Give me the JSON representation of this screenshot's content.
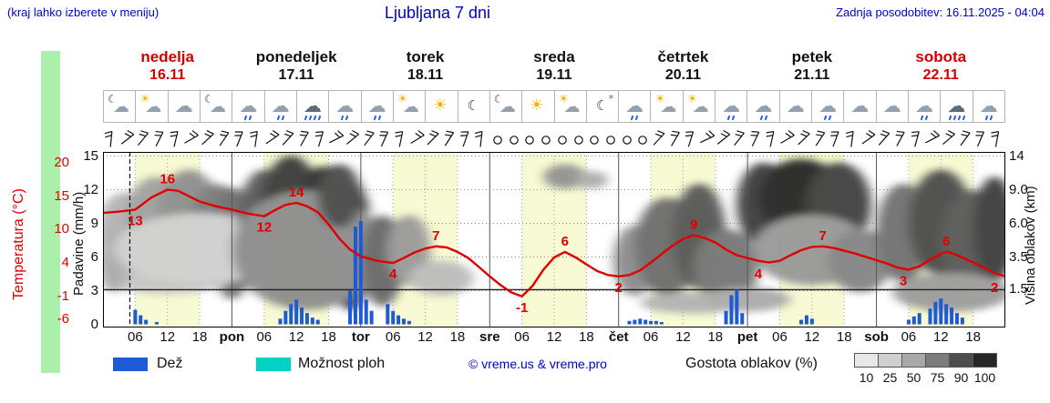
{
  "header": {
    "hint": "(kraj lahko izberete v meniju)",
    "title": "Ljubljana 7 dni",
    "updated": "Zadnja posodobitev: 16.11.2025 - 04:04"
  },
  "axes": {
    "temp_label": "Temperatura (°C)",
    "temp_ticks": [
      "20",
      "15",
      "10",
      "4",
      "-1",
      "-6"
    ],
    "precip_label": "Padavine (mm/h)",
    "precip_ticks": [
      "15",
      "12",
      "9",
      "6",
      "3",
      "0"
    ],
    "cloud_label": "Višina oblakov (km)",
    "cloud_ticks": [
      "14",
      "9.0",
      "6.0",
      "3.5",
      "1.5"
    ]
  },
  "days": [
    {
      "name": "nedelja",
      "date": "16.11",
      "weekend": true,
      "icons": [
        "moon-cloud",
        "sun-cloud",
        "cloud",
        "moon-cloud"
      ]
    },
    {
      "name": "ponedeljek",
      "date": "17.11",
      "weekend": false,
      "icons": [
        "cloud-rain",
        "cloud-rain",
        "heavy-rain",
        "cloud-rain"
      ]
    },
    {
      "name": "torek",
      "date": "18.11",
      "weekend": false,
      "icons": [
        "cloud-rain",
        "sun-cloud",
        "sun",
        "moon"
      ]
    },
    {
      "name": "sreda",
      "date": "19.11",
      "weekend": false,
      "icons": [
        "moon-cloud",
        "sun",
        "sun-cloud",
        "moon-stars"
      ]
    },
    {
      "name": "četrtek",
      "date": "20.11",
      "weekend": false,
      "icons": [
        "cloud-rain",
        "sun-cloud",
        "sun-cloud",
        "cloud-rain"
      ]
    },
    {
      "name": "petek",
      "date": "21.11",
      "weekend": false,
      "icons": [
        "cloud-rain",
        "cloud",
        "cloud-rain",
        "cloud"
      ]
    },
    {
      "name": "sobota",
      "date": "22.11",
      "weekend": true,
      "icons": [
        "cloud",
        "cloud-rain",
        "heavy-rain",
        "cloud-rain"
      ]
    }
  ],
  "xaxis": {
    "hour_labels": [
      "06",
      "12",
      "18"
    ],
    "day_abbrs": [
      "pon",
      "tor",
      "sre",
      "čet",
      "pet",
      "sob"
    ]
  },
  "legend": {
    "rain": "Dež",
    "showers": "Možnost ploh",
    "copyright": "© vreme.us & vreme.pro",
    "cloud_density": "Gostota oblakov (%)",
    "scale_values": [
      "10",
      "25",
      "50",
      "75",
      "90",
      "100"
    ],
    "scale_colors": [
      "#e8e8e8",
      "#cfcfcf",
      "#a8a8a8",
      "#7c7c7c",
      "#4e4e4e",
      "#262626"
    ],
    "rain_color": "#1e5ad2",
    "showers_color": "#00d2c4"
  },
  "chart_data": {
    "type": "meteogram",
    "title": "Ljubljana 7 dni",
    "x_unit": "hours",
    "x_range": [
      0,
      168
    ],
    "now_line_hour": 5,
    "daytime_band": {
      "from_hour": 6,
      "to_hour": 18,
      "color": "#f7fad2"
    },
    "temperature": {
      "unit": "°C",
      "color": "#e10000",
      "axis_ticks": [
        20,
        15,
        10,
        4,
        -1,
        -6
      ],
      "freezing_line": 0,
      "points": [
        [
          0,
          12.5
        ],
        [
          3,
          12.7
        ],
        [
          6,
          13
        ],
        [
          9,
          14.8
        ],
        [
          12,
          16
        ],
        [
          14,
          15.8
        ],
        [
          16,
          15
        ],
        [
          18,
          14.2
        ],
        [
          21,
          13.5
        ],
        [
          24,
          13
        ],
        [
          27,
          12.4
        ],
        [
          30,
          12
        ],
        [
          32,
          12.9
        ],
        [
          34,
          13.7
        ],
        [
          36,
          14
        ],
        [
          38,
          13.5
        ],
        [
          40,
          12.6
        ],
        [
          42,
          10.8
        ],
        [
          44,
          8.4
        ],
        [
          46,
          6.4
        ],
        [
          48,
          5.2
        ],
        [
          51,
          4.4
        ],
        [
          54,
          4
        ],
        [
          56,
          4.9
        ],
        [
          58,
          5.9
        ],
        [
          60,
          6.6
        ],
        [
          62,
          7
        ],
        [
          64,
          6.8
        ],
        [
          66,
          6
        ],
        [
          68,
          4.9
        ],
        [
          70,
          3.4
        ],
        [
          72,
          2
        ],
        [
          74,
          0.7
        ],
        [
          76,
          -0.4
        ],
        [
          78,
          -1
        ],
        [
          80,
          0.6
        ],
        [
          82,
          3
        ],
        [
          84,
          5
        ],
        [
          86,
          6
        ],
        [
          88,
          5
        ],
        [
          90,
          3.8
        ],
        [
          92,
          2.8
        ],
        [
          94,
          2.2
        ],
        [
          96,
          2
        ],
        [
          98,
          2.2
        ],
        [
          100,
          2.9
        ],
        [
          102,
          4.1
        ],
        [
          104,
          5.6
        ],
        [
          106,
          7.1
        ],
        [
          108,
          8.3
        ],
        [
          110,
          9
        ],
        [
          112,
          8.5
        ],
        [
          114,
          7.7
        ],
        [
          116,
          6.4
        ],
        [
          118,
          5.4
        ],
        [
          120,
          4.9
        ],
        [
          122,
          4.4
        ],
        [
          124,
          4.1
        ],
        [
          126,
          4.4
        ],
        [
          128,
          5.4
        ],
        [
          130,
          6.3
        ],
        [
          132,
          6.9
        ],
        [
          134,
          7
        ],
        [
          136,
          6.7
        ],
        [
          138,
          6.2
        ],
        [
          140,
          5.7
        ],
        [
          142,
          5.1
        ],
        [
          144,
          4.5
        ],
        [
          146,
          3.9
        ],
        [
          148,
          3.3
        ],
        [
          150,
          3
        ],
        [
          152,
          3.5
        ],
        [
          154,
          4.6
        ],
        [
          156,
          5.7
        ],
        [
          157,
          6
        ],
        [
          158,
          5.8
        ],
        [
          160,
          5
        ],
        [
          162,
          4.1
        ],
        [
          164,
          3.3
        ],
        [
          166,
          2.5
        ],
        [
          168,
          2
        ]
      ],
      "labels": [
        {
          "h": 6,
          "v": 13,
          "t": "13",
          "pos": "below"
        },
        {
          "h": 12,
          "v": 16,
          "t": "16",
          "pos": "above"
        },
        {
          "h": 30,
          "v": 12,
          "t": "12",
          "pos": "below"
        },
        {
          "h": 36,
          "v": 14,
          "t": "14",
          "pos": "above"
        },
        {
          "h": 54,
          "v": 4,
          "t": "4",
          "pos": "below"
        },
        {
          "h": 62,
          "v": 7,
          "t": "7",
          "pos": "above"
        },
        {
          "h": 78,
          "v": -1,
          "t": "-1",
          "pos": "below"
        },
        {
          "h": 86,
          "v": 6,
          "t": "6",
          "pos": "above"
        },
        {
          "h": 96,
          "v": 2,
          "t": "2",
          "pos": "below"
        },
        {
          "h": 110,
          "v": 9,
          "t": "9",
          "pos": "above"
        },
        {
          "h": 122,
          "v": 4,
          "t": "4",
          "pos": "below"
        },
        {
          "h": 134,
          "v": 7,
          "t": "7",
          "pos": "above"
        },
        {
          "h": 149,
          "v": 3,
          "t": "3",
          "pos": "below"
        },
        {
          "h": 157,
          "v": 6,
          "t": "6",
          "pos": "above"
        },
        {
          "h": 166,
          "v": 2,
          "t": "2",
          "pos": "below"
        }
      ]
    },
    "precipitation": {
      "unit": "mm/h",
      "color": "#1e5ad2",
      "axis_ticks": [
        15,
        12,
        9,
        6,
        3,
        0
      ],
      "bars": [
        [
          6,
          1.3
        ],
        [
          7,
          0.8
        ],
        [
          8,
          0.4
        ],
        [
          10,
          0.2
        ],
        [
          33,
          0.5
        ],
        [
          34,
          1.2
        ],
        [
          35,
          1.8
        ],
        [
          36,
          2.2
        ],
        [
          37,
          1.5
        ],
        [
          38,
          1.0
        ],
        [
          39,
          0.6
        ],
        [
          40,
          0.4
        ],
        [
          46,
          3.0
        ],
        [
          47,
          8.7
        ],
        [
          48,
          9.2
        ],
        [
          49,
          2.2
        ],
        [
          50,
          1.2
        ],
        [
          53,
          1.8
        ],
        [
          54,
          1.2
        ],
        [
          55,
          0.8
        ],
        [
          56,
          0.5
        ],
        [
          57,
          0.3
        ],
        [
          98,
          0.3
        ],
        [
          99,
          0.4
        ],
        [
          100,
          0.5
        ],
        [
          101,
          0.4
        ],
        [
          102,
          0.3
        ],
        [
          103,
          0.3
        ],
        [
          104,
          0.2
        ],
        [
          116,
          1.2
        ],
        [
          117,
          2.6
        ],
        [
          118,
          3.1
        ],
        [
          119,
          1.0
        ],
        [
          130,
          0.4
        ],
        [
          131,
          0.8
        ],
        [
          132,
          0.5
        ],
        [
          150,
          0.4
        ],
        [
          151,
          0.7
        ],
        [
          152,
          1.0
        ],
        [
          154,
          1.4
        ],
        [
          155,
          2.0
        ],
        [
          156,
          2.3
        ],
        [
          157,
          1.8
        ],
        [
          158,
          1.5
        ],
        [
          159,
          1.0
        ],
        [
          160,
          0.6
        ]
      ]
    },
    "cloud_height_axis": {
      "unit": "km",
      "ticks": [
        "14",
        "9.0",
        "6.0",
        "3.5",
        "1.5"
      ]
    },
    "clouds": [
      [
        4,
        0.45,
        5,
        0.22,
        "#b2b2b2"
      ],
      [
        10,
        0.4,
        6,
        0.26,
        "#a0a0a0"
      ],
      [
        16,
        0.38,
        6,
        0.28,
        "#8e8e8e"
      ],
      [
        21,
        0.46,
        5,
        0.28,
        "#7c7c7c"
      ],
      [
        24,
        0.52,
        4,
        0.32,
        "#6e6e6e"
      ],
      [
        12,
        0.72,
        12,
        0.09,
        "#c6c6c6"
      ],
      [
        2,
        0.62,
        3,
        0.18,
        "#aaaaaa"
      ],
      [
        18,
        0.55,
        16,
        0.2,
        "#cfcfcf"
      ],
      [
        30,
        0.42,
        5,
        0.32,
        "#5a5a5a"
      ],
      [
        35,
        0.38,
        6,
        0.36,
        "#3a3a3a"
      ],
      [
        41,
        0.42,
        5,
        0.34,
        "#2e2e2e"
      ],
      [
        46,
        0.52,
        4,
        0.38,
        "#242424"
      ],
      [
        38,
        0.56,
        14,
        0.34,
        "#8c8c8c"
      ],
      [
        44,
        0.25,
        4,
        0.18,
        "#4a4a4a"
      ],
      [
        52,
        0.62,
        4,
        0.26,
        "#686868"
      ],
      [
        57,
        0.56,
        4,
        0.2,
        "#9a9a9a"
      ],
      [
        63,
        0.72,
        6,
        0.1,
        "#bcbcbc"
      ],
      [
        86,
        0.14,
        4,
        0.07,
        "#929292"
      ],
      [
        91,
        0.16,
        3,
        0.05,
        "#ababab"
      ],
      [
        99,
        0.62,
        4,
        0.2,
        "#8c8c8c"
      ],
      [
        105,
        0.54,
        6,
        0.28,
        "#6c6c6c"
      ],
      [
        111,
        0.48,
        5,
        0.3,
        "#565656"
      ],
      [
        116,
        0.66,
        6,
        0.22,
        "#747474"
      ],
      [
        110,
        0.86,
        10,
        0.06,
        "#b2b2b2"
      ],
      [
        123,
        0.3,
        5,
        0.24,
        "#3c3c3c"
      ],
      [
        130,
        0.26,
        8,
        0.22,
        "#262626"
      ],
      [
        137,
        0.3,
        6,
        0.24,
        "#404040"
      ],
      [
        132,
        0.56,
        11,
        0.2,
        "#989898"
      ],
      [
        141,
        0.62,
        6,
        0.18,
        "#848484"
      ],
      [
        120,
        0.84,
        8,
        0.07,
        "#aaaaaa"
      ],
      [
        149,
        0.46,
        5,
        0.28,
        "#707070"
      ],
      [
        156,
        0.4,
        6,
        0.3,
        "#4c4c4c"
      ],
      [
        162,
        0.5,
        6,
        0.28,
        "#585858"
      ],
      [
        166,
        0.44,
        4,
        0.3,
        "#3c3c3c"
      ],
      [
        158,
        0.8,
        11,
        0.11,
        "#9c9c9c"
      ]
    ],
    "wind": {
      "slots": 56,
      "interval_hours": 3,
      "first_hour": 1.5,
      "calm_from_slot": 24,
      "calm_to_slot": 33
    }
  }
}
